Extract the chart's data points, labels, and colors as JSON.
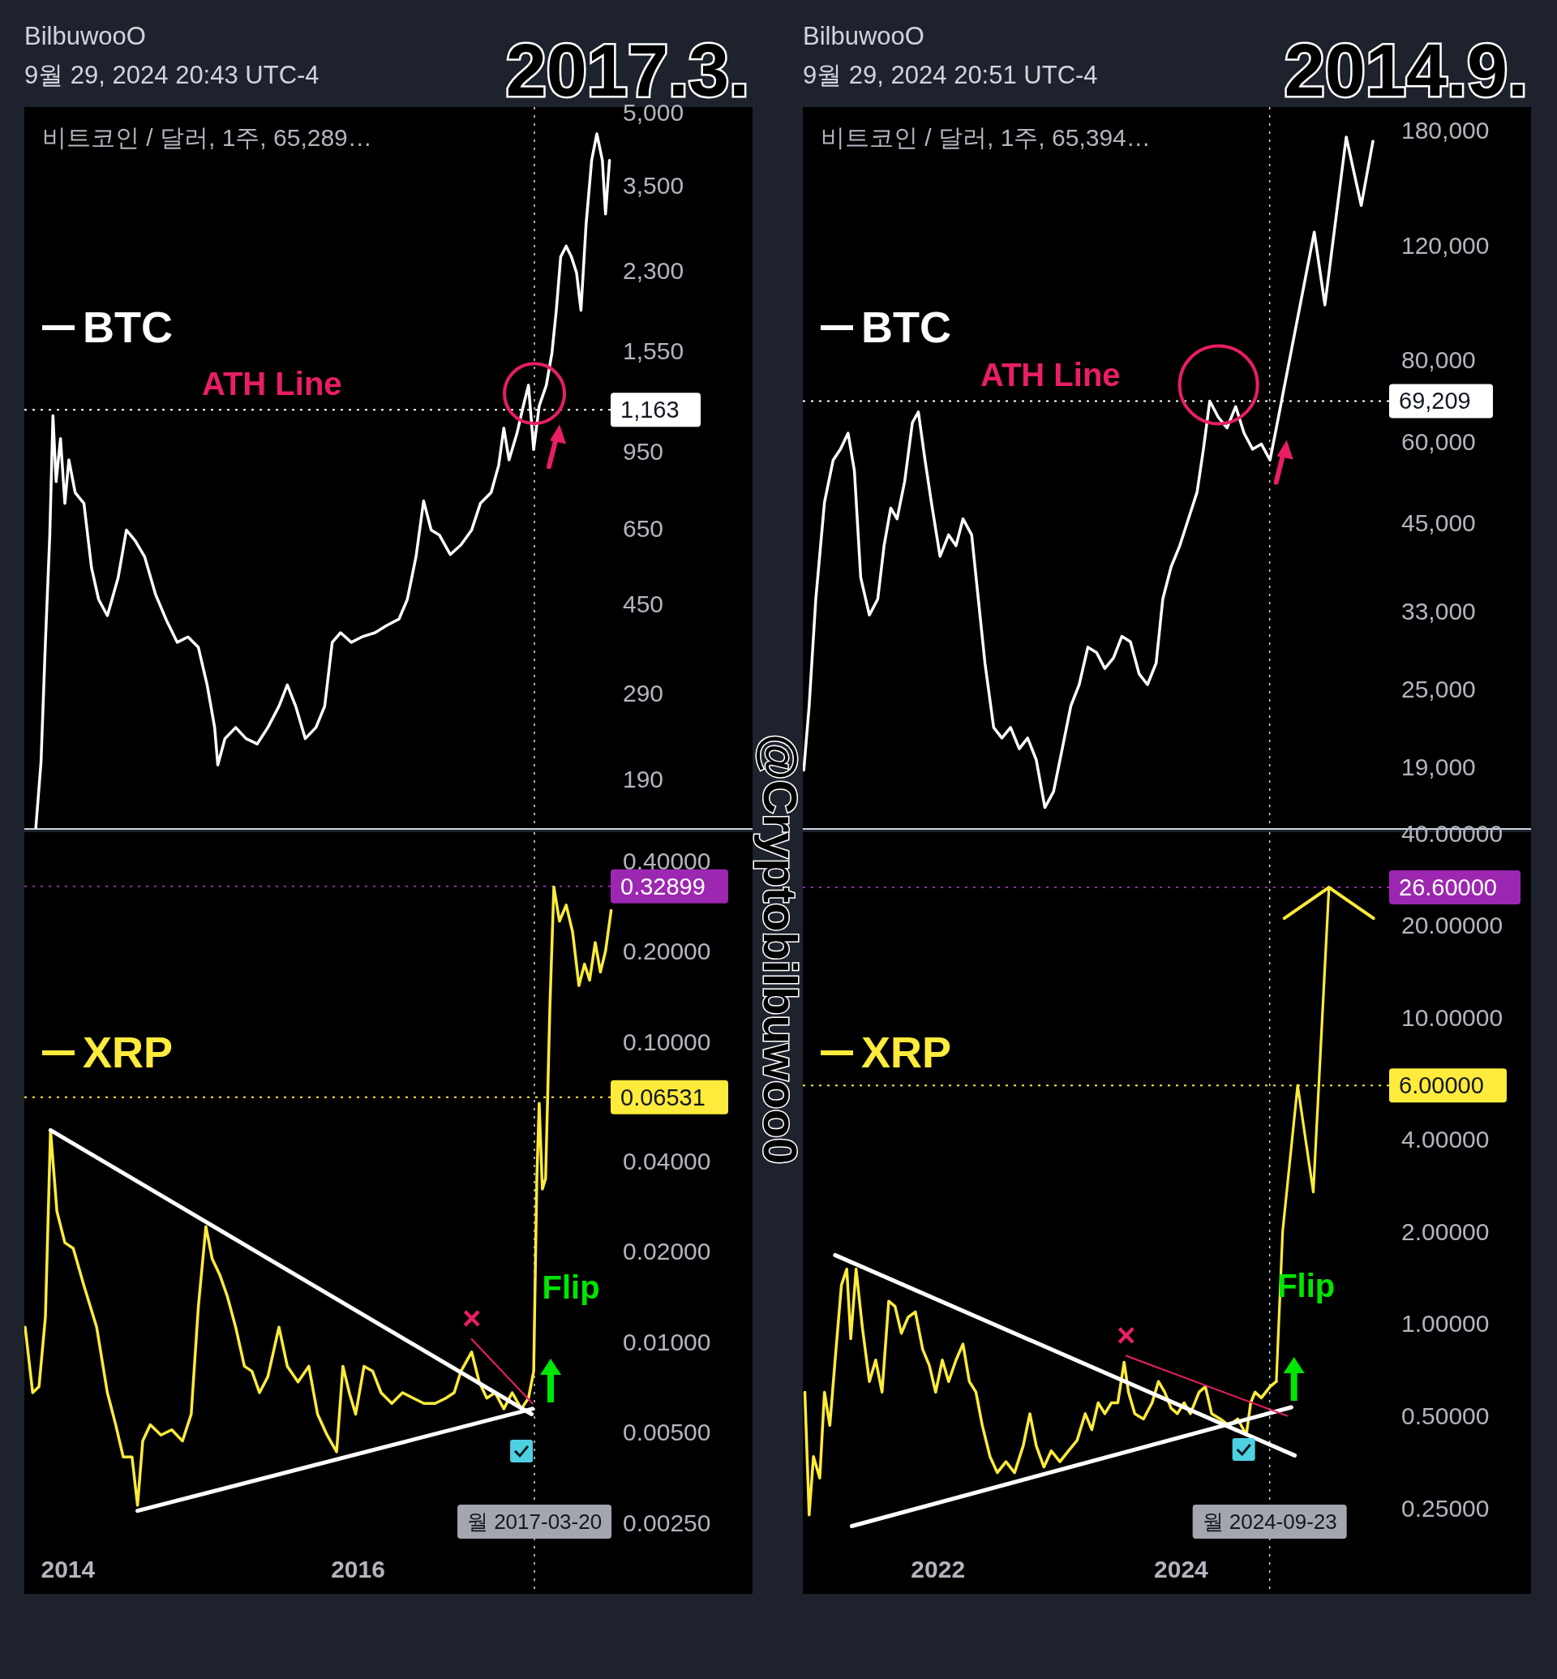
{
  "chart_data": [
    {
      "type": "line",
      "title": "2017.3.",
      "subtitle": "비트코인 / 달러, 1주, 65,289…",
      "log": true,
      "tick_labels": "y",
      "xlim": [
        "2013-09-13",
        "2018-09-20"
      ],
      "ylim": [
        149,
        5130
      ],
      "yticks": [
        {
          "value": 5000,
          "label": "5,000"
        },
        {
          "value": 3500,
          "label": "3,500"
        },
        {
          "value": 2300,
          "label": "2,300"
        },
        {
          "value": 1550,
          "label": "1,550"
        },
        {
          "value": 950,
          "label": "950"
        },
        {
          "value": 650,
          "label": "650"
        },
        {
          "value": 450,
          "label": "450"
        },
        {
          "value": 290,
          "label": "290"
        },
        {
          "value": 190,
          "label": "190"
        }
      ],
      "series": [
        {
          "name": "BTC",
          "color": "#ffffff",
          "x": [
            "2013-10-12",
            "2013-10-25",
            "2013-11-05",
            "2013-11-16",
            "2013-11-24",
            "2013-12-02",
            "2013-12-13",
            "2013-12-24",
            "2014-01-03",
            "2014-01-19",
            "2014-02-10",
            "2014-03-01",
            "2014-03-19",
            "2014-04-10",
            "2014-05-07",
            "2014-05-28",
            "2014-06-19",
            "2014-07-13",
            "2014-08-09",
            "2014-09-06",
            "2014-10-03",
            "2014-10-30",
            "2014-11-25",
            "2014-12-17",
            "2015-01-05",
            "2015-01-13",
            "2015-01-31",
            "2015-02-27",
            "2015-03-25",
            "2015-04-22",
            "2015-05-19",
            "2015-06-16",
            "2015-07-07",
            "2015-07-28",
            "2015-08-21",
            "2015-09-17",
            "2015-10-09",
            "2015-10-28",
            "2015-11-18",
            "2015-12-15",
            "2016-01-11",
            "2016-02-13",
            "2016-03-11",
            "2016-04-13",
            "2016-05-04",
            "2016-05-26",
            "2016-06-14",
            "2016-07-03",
            "2016-07-24",
            "2016-08-20",
            "2016-09-16",
            "2016-10-13",
            "2016-11-04",
            "2016-12-01",
            "2016-12-20",
            "2017-01-02",
            "2017-01-15",
            "2017-02-04",
            "2017-02-20",
            "2017-03-05",
            "2017-03-18",
            "2017-04-01",
            "2017-04-19",
            "2017-05-03",
            "2017-05-14",
            "2017-05-25",
            "2017-06-08",
            "2017-06-21",
            "2017-07-04",
            "2017-07-15",
            "2017-07-28",
            "2017-08-11",
            "2017-08-24",
            "2017-09-07",
            "2017-09-15",
            "2017-09-25"
          ],
          "values": [
            150,
            207,
            372,
            629,
            1130,
            818,
            1010,
            735,
            910,
            775,
            735,
            537,
            459,
            424,
            510,
            645,
            612,
            566,
            471,
            414,
            372,
            382,
            363,
            302,
            245,
            204,
            232,
            245,
            232,
            226,
            245,
            272,
            302,
            272,
            232,
            245,
            272,
            372,
            390,
            372,
            382,
            390,
            403,
            417,
            459,
            566,
            744,
            645,
            629,
            572,
            600,
            645,
            735,
            775,
            885,
            1063,
            910,
            1036,
            1185,
            1312,
            957,
            1185,
            1312,
            1535,
            1894,
            2462,
            2595,
            2462,
            2276,
            1894,
            2882,
            3950,
            4500,
            3950,
            3038,
            3950
          ]
        }
      ],
      "ref_lines": [
        {
          "axis": "y",
          "value": 1163,
          "label": "1,163",
          "color": "#ffffff",
          "line_style": "dotted"
        },
        {
          "axis": "x",
          "value": "2017-03-20",
          "color": "#ffffff",
          "line_style": "dotted"
        }
      ],
      "annotations": [
        "BilbuwooO",
        "9월 29, 2024 20:43 UTC-4",
        "ATH Line",
        "@Cryptobilbuwoo0"
      ]
    },
    {
      "type": "line",
      "log": true,
      "xlim": [
        "2013-09-13",
        "2018-09-20"
      ],
      "ylim": [
        0.00145,
        0.498
      ],
      "xticks": [
        "2014",
        "2016"
      ],
      "yticks": [
        {
          "value": 0.4,
          "label": "0.40000"
        },
        {
          "value": 0.2,
          "label": "0.20000"
        },
        {
          "value": 0.1,
          "label": "0.10000"
        },
        {
          "value": 0.04,
          "label": "0.04000"
        },
        {
          "value": 0.02,
          "label": "0.02000"
        },
        {
          "value": 0.01,
          "label": "0.01000"
        },
        {
          "value": 0.005,
          "label": "0.00500"
        },
        {
          "value": 0.0025,
          "label": "0.00250"
        }
      ],
      "series": [
        {
          "name": "XRP",
          "color": "#ffeb3b",
          "x": [
            "2013-09-15",
            "2013-10-04",
            "2013-10-20",
            "2013-11-05",
            "2013-11-18",
            "2013-12-04",
            "2013-12-24",
            "2014-01-14",
            "2014-02-10",
            "2014-03-14",
            "2014-04-10",
            "2014-05-01",
            "2014-05-20",
            "2014-06-11",
            "2014-06-25",
            "2014-07-08",
            "2014-07-27",
            "2014-08-23",
            "2014-09-19",
            "2014-10-16",
            "2014-11-07",
            "2014-11-25",
            "2014-12-14",
            "2014-12-30",
            "2015-01-18",
            "2015-02-06",
            "2015-02-27",
            "2015-03-21",
            "2015-04-09",
            "2015-04-28",
            "2015-05-19",
            "2015-06-16",
            "2015-07-07",
            "2015-08-03",
            "2015-08-30",
            "2015-09-21",
            "2015-10-15",
            "2015-11-08",
            "2015-11-24",
            "2015-12-10",
            "2015-12-26",
            "2016-01-16",
            "2016-02-07",
            "2016-02-28",
            "2016-03-26",
            "2016-04-22",
            "2016-05-19",
            "2016-06-15",
            "2016-07-13",
            "2016-08-09",
            "2016-08-30",
            "2016-09-16",
            "2016-10-13",
            "2016-11-01",
            "2016-11-20",
            "2016-12-11",
            "2017-01-02",
            "2017-01-23",
            "2017-02-15",
            "2017-03-05",
            "2017-03-18",
            "2017-03-26",
            "2017-04-01",
            "2017-04-09",
            "2017-04-17",
            "2017-04-28",
            "2017-05-08",
            "2017-05-22",
            "2017-06-08",
            "2017-06-24",
            "2017-07-10",
            "2017-07-24",
            "2017-08-06",
            "2017-08-20",
            "2017-09-02",
            "2017-09-15",
            "2017-09-29"
          ],
          "values": [
            0.0112,
            0.00678,
            0.0071,
            0.0121,
            0.0507,
            0.0272,
            0.0214,
            0.0205,
            0.0154,
            0.0112,
            0.00678,
            0.0053,
            0.00414,
            0.00414,
            0.00286,
            0.00468,
            0.0053,
            0.0049,
            0.0051,
            0.00468,
            0.00575,
            0.0131,
            0.0242,
            0.0189,
            0.01673,
            0.0142,
            0.0112,
            0.0083,
            0.00799,
            0.00678,
            0.00766,
            0.0112,
            0.0083,
            0.00736,
            0.0083,
            0.00575,
            0.0049,
            0.00431,
            0.0083,
            0.00678,
            0.00575,
            0.0083,
            0.00799,
            0.00678,
            0.00624,
            0.00678,
            0.0065,
            0.00624,
            0.00624,
            0.0065,
            0.00678,
            0.00799,
            0.00926,
            0.00736,
            0.0065,
            0.00678,
            0.00599,
            0.00678,
            0.00599,
            0.0065,
            0.00799,
            0.035,
            0.0623,
            0.0323,
            0.035,
            0.1305,
            0.3273,
            0.2518,
            0.2848,
            0.2318,
            0.1537,
            0.1812,
            0.1602,
            0.2136,
            0.1705,
            0.2,
            0.2733
          ]
        },
        {
          "color": "#ffffff",
          "x": [
            "2013-11-18",
            "2017-03-13"
          ],
          "values": [
            0.0507,
            0.00575
          ]
        },
        {
          "color": "#ffffff",
          "x": [
            "2014-06-25",
            "2017-03-15"
          ],
          "values": [
            0.00274,
            0.00599
          ]
        },
        {
          "color": "#e91e63",
          "x": [
            "2016-10-13",
            "2017-03-15"
          ],
          "values": [
            0.01022,
            0.00624
          ]
        }
      ],
      "ref_lines": [
        {
          "axis": "y",
          "value": 0.32899,
          "label": "0.32899",
          "color": "#9c27b0",
          "line_style": "dotted"
        },
        {
          "axis": "y",
          "value": 0.06531,
          "label": "0.06531",
          "color": "#ffeb3b",
          "line_style": "dotted"
        },
        {
          "axis": "x",
          "value": "2017-03-20",
          "label": "월 2017-03-20",
          "color": "#ffffff",
          "line_style": "dotted"
        }
      ],
      "annotations": [
        "×",
        "Flip"
      ]
    },
    {
      "type": "line",
      "title": "2014.9.",
      "subtitle": "비트코인 / 달러, 1주, 65,394…",
      "log": true,
      "tick_labels": "y",
      "xlim": [
        "2020-11-21",
        "2026-11-17"
      ],
      "ylim": [
        15270,
        195500
      ],
      "yticks": [
        {
          "value": 180000,
          "label": "180,000"
        },
        {
          "value": 120000,
          "label": "120,000"
        },
        {
          "value": 80000,
          "label": "80,000"
        },
        {
          "value": 60000,
          "label": "60,000"
        },
        {
          "value": 45000,
          "label": "45,000"
        },
        {
          "value": 33000,
          "label": "33,000"
        },
        {
          "value": 25000,
          "label": "25,000"
        },
        {
          "value": 19000,
          "label": "19,000"
        }
      ],
      "series": [
        {
          "name": "BTC",
          "color": "#ffffff",
          "x": [
            "2020-11-24",
            "2020-12-10",
            "2020-12-30",
            "2021-01-25",
            "2021-02-20",
            "2021-03-14",
            "2021-04-06",
            "2021-04-25",
            "2021-05-14",
            "2021-06-09",
            "2021-07-04",
            "2021-07-23",
            "2021-08-12",
            "2021-08-31",
            "2021-09-23",
            "2021-10-16",
            "2021-11-03",
            "2021-11-23",
            "2021-12-12",
            "2022-01-07",
            "2022-02-02",
            "2022-02-24",
            "2022-03-17",
            "2022-04-12",
            "2022-05-02",
            "2022-05-22",
            "2022-06-17",
            "2022-07-12",
            "2022-08-07",
            "2022-09-02",
            "2022-09-27",
            "2022-10-23",
            "2022-11-18",
            "2022-12-14",
            "2023-01-09",
            "2023-02-04",
            "2023-03-01",
            "2023-03-27",
            "2023-04-22",
            "2023-05-17",
            "2023-06-12",
            "2023-07-07",
            "2023-08-02",
            "2023-08-28",
            "2023-09-22",
            "2023-10-18",
            "2023-11-07",
            "2023-12-02",
            "2023-12-28",
            "2024-01-23",
            "2024-02-18",
            "2024-03-08",
            "2024-03-27",
            "2024-04-22",
            "2024-05-18",
            "2024-06-13",
            "2024-07-08",
            "2024-08-03",
            "2024-08-29",
            "2024-09-24",
            "2024-10-13",
            "2025-02-04",
            "2025-03-08",
            "2025-05-11",
            "2025-06-25",
            "2025-07-30"
          ],
          "values": [
            18800,
            23580,
            34400,
            48400,
            56200,
            58400,
            61800,
            54100,
            37100,
            32500,
            34400,
            41530,
            47430,
            45650,
            52120,
            64150,
            66600,
            56200,
            48400,
            40000,
            43150,
            41530,
            45650,
            43150,
            34400,
            27430,
            21860,
            21050,
            21860,
            20270,
            21050,
            19500,
            16470,
            17430,
            20270,
            23580,
            25430,
            29020,
            28480,
            26910,
            27940,
            30140,
            29580,
            26410,
            25430,
            27430,
            34400,
            38520,
            41530,
            45650,
            50190,
            58400,
            69200,
            65360,
            62950,
            67880,
            61800,
            58400,
            59480,
            56200,
            62950,
            125700,
            97200,
            175900,
            138100,
            173200
          ]
        }
      ],
      "ref_lines": [
        {
          "axis": "y",
          "value": 69209,
          "label": "69,209",
          "color": "#ffffff",
          "line_style": "dotted"
        },
        {
          "axis": "x",
          "value": "2024-09-23",
          "color": "#ffffff",
          "line_style": "dotted"
        }
      ],
      "annotations": [
        "BilbuwooO",
        "9월 29, 2024 20:51 UTC-4",
        "ATH Line"
      ]
    },
    {
      "type": "line",
      "log": true,
      "xlim": [
        "2020-11-21",
        "2026-11-17"
      ],
      "ylim": [
        0.131,
        40.3
      ],
      "xticks": [
        "2022",
        "2024"
      ],
      "yticks": [
        {
          "value": 40,
          "label": "40.00000"
        },
        {
          "value": 20,
          "label": "20.00000"
        },
        {
          "value": 10,
          "label": "10.00000"
        },
        {
          "value": 4,
          "label": "4.00000"
        },
        {
          "value": 2,
          "label": "2.00000"
        },
        {
          "value": 1,
          "label": "1.00000"
        },
        {
          "value": 0.5,
          "label": "0.50000"
        },
        {
          "value": 0.25,
          "label": "0.25000"
        }
      ],
      "series": [
        {
          "name": "XRP",
          "color": "#ffeb3b",
          "x": [
            "2020-11-27",
            "2020-12-10",
            "2020-12-23",
            "2021-01-11",
            "2021-01-25",
            "2021-02-10",
            "2021-02-26",
            "2021-03-17",
            "2021-04-02",
            "2021-04-14",
            "2021-04-30",
            "2021-05-19",
            "2021-06-09",
            "2021-06-28",
            "2021-07-17",
            "2021-08-06",
            "2021-08-25",
            "2021-09-13",
            "2021-10-03",
            "2021-10-25",
            "2021-11-16",
            "2021-12-06",
            "2021-12-25",
            "2022-01-14",
            "2022-02-02",
            "2022-02-24",
            "2022-03-17",
            "2022-04-05",
            "2022-04-25",
            "2022-05-14",
            "2022-06-06",
            "2022-06-28",
            "2022-07-24",
            "2022-08-19",
            "2022-09-14",
            "2022-10-04",
            "2022-10-23",
            "2022-11-15",
            "2022-12-07",
            "2023-01-02",
            "2023-01-28",
            "2023-02-23",
            "2023-03-19",
            "2023-04-08",
            "2023-04-27",
            "2023-05-17",
            "2023-06-06",
            "2023-06-25",
            "2023-07-14",
            "2023-07-27",
            "2023-08-15",
            "2023-09-10",
            "2023-10-06",
            "2023-10-25",
            "2023-11-13",
            "2023-12-02",
            "2023-12-21",
            "2024-01-10",
            "2024-01-29",
            "2024-02-24",
            "2024-03-14",
            "2024-04-02",
            "2024-04-28",
            "2024-05-24",
            "2024-06-19",
            "2024-07-15",
            "2024-07-28",
            "2024-08-10",
            "2024-08-29",
            "2024-09-24",
            "2024-10-13"
          ],
          "values": [
            0.597,
            0.237,
            0.368,
            0.313,
            0.597,
            0.465,
            0.76,
            1.336,
            1.507,
            0.893,
            1.507,
            0.968,
            0.647,
            0.76,
            0.597,
            1.184,
            1.138,
            0.93,
            1.049,
            1.092,
            0.824,
            0.73,
            0.597,
            0.76,
            0.647,
            0.76,
            0.858,
            0.647,
            0.597,
            0.465,
            0.368,
            0.326,
            0.354,
            0.326,
            0.399,
            0.508,
            0.399,
            0.34,
            0.384,
            0.354,
            0.384,
            0.416,
            0.508,
            0.45,
            0.551,
            0.508,
            0.551,
            0.551,
            0.748,
            0.597,
            0.508,
            0.488,
            0.551,
            0.647,
            0.597,
            0.529,
            0.508,
            0.551,
            0.508,
            0.597,
            0.622,
            0.508,
            0.488,
            0.465,
            0.488,
            0.433,
            0.551,
            0.597,
            0.572,
            0.622,
            0.647
          ]
        },
        {
          "color": "#ffeb3b",
          "x": [
            "2024-10-13",
            "2024-11-01",
            "2024-12-16",
            "2025-02-01",
            "2025-03-20"
          ],
          "values": [
            0.647,
            2.0,
            6.0,
            2.69,
            26.6
          ]
        },
        {
          "color": "#ffffff",
          "x": [
            "2021-02-26",
            "2024-12-07"
          ],
          "values": [
            1.674,
            0.371
          ]
        },
        {
          "color": "#ffffff",
          "x": [
            "2021-04-17",
            "2024-11-27"
          ],
          "values": [
            0.218,
            0.533
          ]
        },
        {
          "color": "#e91e63",
          "x": [
            "2023-07-20",
            "2024-11-14"
          ],
          "values": [
            0.785,
            0.5
          ]
        }
      ],
      "ref_lines": [
        {
          "axis": "y",
          "value": 26.6,
          "label": "26.60000",
          "color": "#9c27b0",
          "line_style": "dotted"
        },
        {
          "axis": "y",
          "value": 6.0,
          "label": "6.00000",
          "color": "#ffeb3b",
          "line_style": "dotted"
        },
        {
          "axis": "x",
          "value": "2024-09-23",
          "label": "월 2024-09-23",
          "color": "#ffffff",
          "line_style": "dotted"
        }
      ],
      "annotations": [
        "×",
        "Flip"
      ]
    }
  ]
}
